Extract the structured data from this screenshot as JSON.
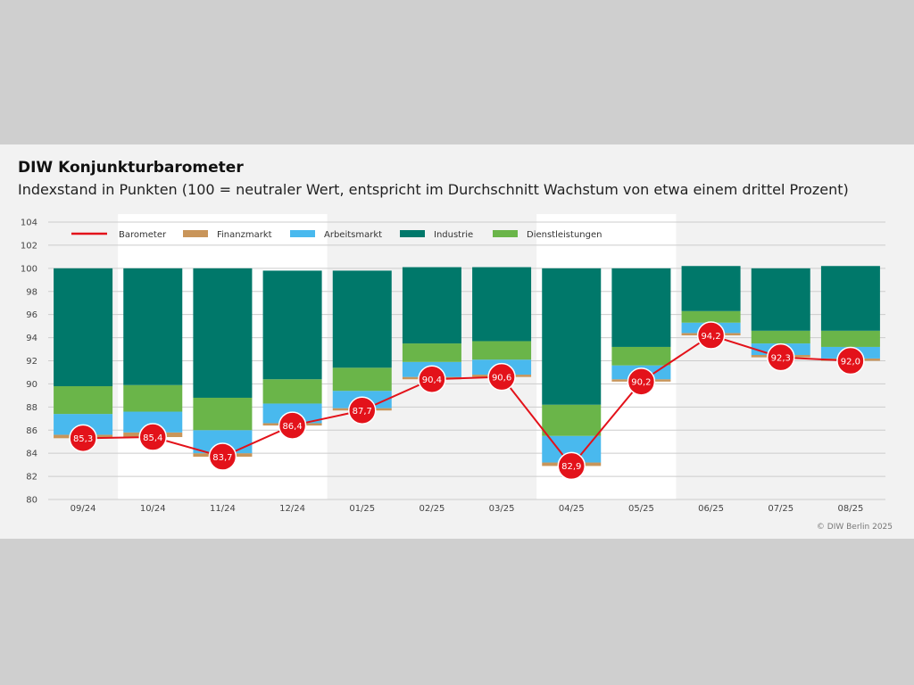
{
  "header": {
    "title": "DIW Konjunkturbarometer",
    "subtitle": "Indexstand in Punkten (100 = neutraler Wert, entspricht im Durchschnitt Wachstum von etwa einem drittel Prozent)",
    "credit": "© DIW Berlin 2025"
  },
  "colors": {
    "barometer": "#e3121a",
    "finanzmarkt": "#c9955a",
    "arbeitsmarkt": "#49b9ee",
    "industrie": "#00786a",
    "dienstleistungen": "#6ab549",
    "band": "#ffffff",
    "grid": "#cccccc"
  },
  "chart_data": {
    "type": "bar",
    "categories": [
      "09/24",
      "10/24",
      "11/24",
      "12/24",
      "01/25",
      "02/25",
      "03/25",
      "04/25",
      "05/25",
      "06/25",
      "07/25",
      "08/25"
    ],
    "ylim": [
      80,
      104
    ],
    "yticks": [
      80,
      82,
      84,
      86,
      88,
      90,
      92,
      94,
      96,
      98,
      100,
      102,
      104
    ],
    "legend": [
      {
        "key": "barometer",
        "label": "Barometer",
        "kind": "line"
      },
      {
        "key": "finanzmarkt",
        "label": "Finanzmarkt",
        "kind": "bar"
      },
      {
        "key": "arbeitsmarkt",
        "label": "Arbeitsmarkt",
        "kind": "bar"
      },
      {
        "key": "industrie",
        "label": "Industrie",
        "kind": "bar"
      },
      {
        "key": "dienstleistungen",
        "label": "Dienstleistungen",
        "kind": "bar"
      }
    ],
    "barometer": {
      "name": "Barometer",
      "values": [
        85.3,
        85.4,
        83.7,
        86.4,
        87.7,
        90.4,
        90.6,
        82.9,
        90.2,
        94.2,
        92.3,
        92.0
      ],
      "labels": [
        "85,3",
        "85,4",
        "83,7",
        "86,4",
        "87,7",
        "90,4",
        "90,6",
        "82,9",
        "90,2",
        "94,2",
        "92,3",
        "92,0"
      ]
    },
    "series": [
      {
        "key": "finanzmarkt",
        "name": "Finanzmarkt",
        "values": [
          0.3,
          0.4,
          0.3,
          0.2,
          0.2,
          0.2,
          0.2,
          0.3,
          0.2,
          0.2,
          0.2,
          0.2
        ]
      },
      {
        "key": "arbeitsmarkt",
        "name": "Arbeitsmarkt",
        "values": [
          1.8,
          1.8,
          2.0,
          1.7,
          1.5,
          1.3,
          1.3,
          2.3,
          1.2,
          0.9,
          1.0,
          1.0
        ]
      },
      {
        "key": "dienstleistungen",
        "name": "Dienstleistungen",
        "values": [
          2.4,
          2.3,
          2.8,
          2.1,
          2.0,
          1.6,
          1.6,
          2.7,
          1.6,
          1.0,
          1.1,
          1.4
        ]
      },
      {
        "key": "industrie",
        "name": "Industrie",
        "values": [
          10.2,
          10.1,
          11.2,
          9.4,
          8.4,
          6.6,
          6.4,
          11.8,
          6.8,
          3.9,
          5.4,
          5.6
        ]
      }
    ],
    "bands": [
      [
        1,
        3
      ],
      [
        7,
        8
      ]
    ],
    "grid": true,
    "legend_position": "top-left"
  }
}
